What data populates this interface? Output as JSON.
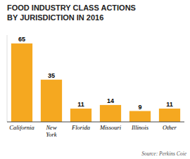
{
  "chart_data": {
    "type": "bar",
    "title": "FOOD INDUSTRY CLASS ACTIONS",
    "subtitle": "BY JURISDICTION IN 2016",
    "annotations": [
      "Source: Perkins Coie"
    ],
    "categories": [
      "California",
      "New\nYork",
      "Florida",
      "Missouri",
      "Illinois",
      "Other"
    ],
    "values": [
      65,
      35,
      11,
      14,
      9,
      11
    ],
    "color": "#f5a820",
    "ylim": [
      0,
      72
    ],
    "data_labels": true,
    "tick_labels": "x"
  }
}
